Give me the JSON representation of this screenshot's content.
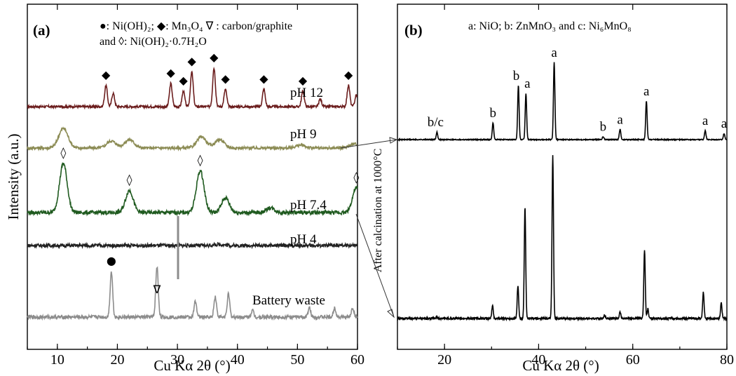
{
  "chart_data": [
    {
      "panel_label": "(a)",
      "type": "line",
      "xlabel": "Cu Kα 2θ (°)",
      "ylabel": "Intensity (a.u.)",
      "xlim": [
        5,
        60
      ],
      "xticks": [
        "10",
        "20",
        "30",
        "40",
        "50",
        "60"
      ],
      "legend": {
        "line1": "●: Ni(OH)₂; ◆: Mn₃O₄ ∇ : carbon/graphite",
        "line2": "and ◊: Ni(OH)₂·0.7H₂O"
      },
      "series": [
        {
          "name": "pH 12",
          "color": "#6b1d1d",
          "peaks": [
            [
              18.1,
              0.55
            ],
            [
              19.3,
              0.35
            ],
            [
              28.9,
              0.6
            ],
            [
              31.0,
              0.4
            ],
            [
              32.4,
              0.9
            ],
            [
              36.1,
              1.0
            ],
            [
              38.0,
              0.45
            ],
            [
              44.4,
              0.45
            ],
            [
              50.9,
              0.4
            ],
            [
              53.8,
              0.2
            ],
            [
              58.5,
              0.55
            ],
            [
              59.8,
              0.3
            ]
          ]
        },
        {
          "name": "pH 9",
          "color": "#8c8c55",
          "peaks": [
            [
              11.0,
              0.7
            ],
            [
              19.0,
              0.25
            ],
            [
              22.0,
              0.3
            ],
            [
              34.0,
              0.4
            ],
            [
              37.0,
              0.3
            ],
            [
              50.5,
              0.1
            ],
            [
              59.5,
              0.15
            ]
          ]
        },
        {
          "name": "pH 7.4",
          "color": "#1f5a1f",
          "peaks": [
            [
              11.0,
              1.0
            ],
            [
              22.0,
              0.45
            ],
            [
              33.8,
              0.85
            ],
            [
              38.0,
              0.3
            ],
            [
              45.5,
              0.1
            ],
            [
              59.8,
              0.5
            ]
          ]
        },
        {
          "name": "pH 4",
          "color": "#222222",
          "peaks": [
            [
              37.0,
              0.15
            ]
          ]
        },
        {
          "name": "Battery waste",
          "color": "#8c8c8c",
          "peaks": [
            [
              19.0,
              1.0
            ],
            [
              26.6,
              1.1
            ],
            [
              33.0,
              0.35
            ],
            [
              36.3,
              0.45
            ],
            [
              38.5,
              0.5
            ],
            [
              42.5,
              0.15
            ],
            [
              52.0,
              0.2
            ],
            [
              56.2,
              0.2
            ],
            [
              59.2,
              0.2
            ]
          ]
        }
      ],
      "markers": [
        {
          "symbol": "◆",
          "x": 18.1,
          "series": "pH 12"
        },
        {
          "symbol": "◆",
          "x": 28.9,
          "series": "pH 12"
        },
        {
          "symbol": "◆",
          "x": 31.0,
          "series": "pH 12"
        },
        {
          "symbol": "◆",
          "x": 32.4,
          "series": "pH 12"
        },
        {
          "symbol": "◆",
          "x": 36.1,
          "series": "pH 12"
        },
        {
          "symbol": "◆",
          "x": 38.0,
          "series": "pH 12"
        },
        {
          "symbol": "◆",
          "x": 44.4,
          "series": "pH 12"
        },
        {
          "symbol": "◆",
          "x": 50.9,
          "series": "pH 12"
        },
        {
          "symbol": "◆",
          "x": 58.5,
          "series": "pH 12"
        },
        {
          "symbol": "◊",
          "x": 11.0,
          "series": "pH 7.4"
        },
        {
          "symbol": "◊",
          "x": 22.0,
          "series": "pH 7.4"
        },
        {
          "symbol": "◊",
          "x": 33.8,
          "series": "pH 7.4"
        },
        {
          "symbol": "◊",
          "x": 59.8,
          "series": "pH 7.4"
        },
        {
          "symbol": "●",
          "x": 19.0,
          "series": "Battery waste"
        },
        {
          "symbol": "∇",
          "x": 26.6,
          "series": "Battery waste"
        }
      ]
    },
    {
      "panel_label": "(b)",
      "type": "line",
      "xlabel": "Cu Kα 2θ (°)",
      "xlim": [
        10,
        80
      ],
      "xticks": [
        "20",
        "40",
        "60",
        "80"
      ],
      "legend": "a: NiO; b: ZnMnO₃ and c: Ni₆MnO₈",
      "annotation": "After calcination at 1000°C",
      "series": [
        {
          "name": "upper",
          "color": "#000000",
          "peaks": [
            [
              18.4,
              0.1
            ],
            [
              30.3,
              0.22
            ],
            [
              35.7,
              0.7
            ],
            [
              37.3,
              0.6
            ],
            [
              43.3,
              1.0
            ],
            [
              53.7,
              0.04
            ],
            [
              57.3,
              0.13
            ],
            [
              62.9,
              0.5
            ],
            [
              75.4,
              0.12
            ],
            [
              79.4,
              0.08
            ]
          ],
          "peak_labels": [
            {
              "x": 18.4,
              "text": "b/c"
            },
            {
              "x": 30.3,
              "text": "b"
            },
            {
              "x": 35.7,
              "text": "b"
            },
            {
              "x": 37.3,
              "text": "a"
            },
            {
              "x": 43.3,
              "text": "a"
            },
            {
              "x": 53.7,
              "text": "b"
            },
            {
              "x": 57.3,
              "text": "a"
            },
            {
              "x": 62.9,
              "text": "a"
            },
            {
              "x": 75.4,
              "text": "a"
            },
            {
              "x": 79.4,
              "text": "a"
            }
          ]
        },
        {
          "name": "lower",
          "color": "#000000",
          "peaks": [
            [
              18.4,
              0.01
            ],
            [
              30.2,
              0.08
            ],
            [
              35.6,
              0.2
            ],
            [
              37.1,
              0.68
            ],
            [
              43.0,
              1.0
            ],
            [
              54.0,
              0.02
            ],
            [
              57.3,
              0.04
            ],
            [
              62.5,
              0.42
            ],
            [
              63.2,
              0.06
            ],
            [
              75.0,
              0.16
            ],
            [
              78.8,
              0.1
            ]
          ]
        }
      ]
    }
  ]
}
